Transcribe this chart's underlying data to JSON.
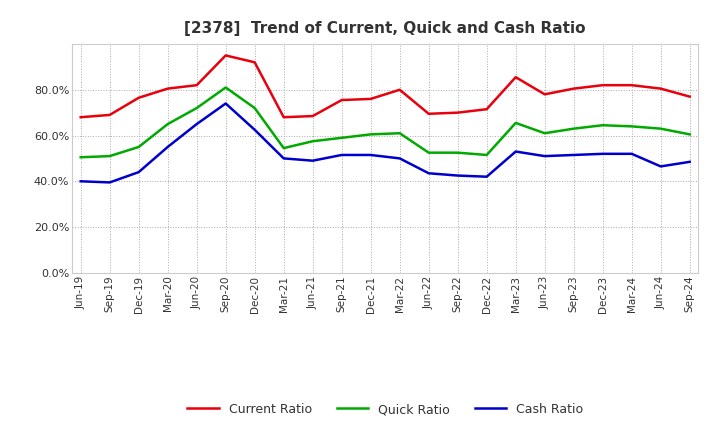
{
  "title": "[2378]  Trend of Current, Quick and Cash Ratio",
  "x_labels": [
    "Jun-19",
    "Sep-19",
    "Dec-19",
    "Mar-20",
    "Jun-20",
    "Sep-20",
    "Dec-20",
    "Mar-21",
    "Jun-21",
    "Sep-21",
    "Dec-21",
    "Mar-22",
    "Jun-22",
    "Sep-22",
    "Dec-22",
    "Mar-23",
    "Jun-23",
    "Sep-23",
    "Dec-23",
    "Mar-24",
    "Jun-24",
    "Sep-24"
  ],
  "current_ratio": [
    68.0,
    69.0,
    76.5,
    80.5,
    82.0,
    95.0,
    92.0,
    68.0,
    68.5,
    75.5,
    76.0,
    80.0,
    69.5,
    70.0,
    71.5,
    85.5,
    78.0,
    80.5,
    82.0,
    82.0,
    80.5,
    77.0
  ],
  "quick_ratio": [
    50.5,
    51.0,
    55.0,
    65.0,
    72.0,
    81.0,
    72.0,
    54.5,
    57.5,
    59.0,
    60.5,
    61.0,
    52.5,
    52.5,
    51.5,
    65.5,
    61.0,
    63.0,
    64.5,
    64.0,
    63.0,
    60.5
  ],
  "cash_ratio": [
    40.0,
    39.5,
    44.0,
    55.0,
    65.0,
    74.0,
    62.5,
    50.0,
    49.0,
    51.5,
    51.5,
    50.0,
    43.5,
    42.5,
    42.0,
    53.0,
    51.0,
    51.5,
    52.0,
    52.0,
    46.5,
    48.5
  ],
  "current_color": "#e8000d",
  "quick_color": "#00aa00",
  "cash_color": "#0000cc",
  "ylim": [
    0,
    100
  ],
  "yticks": [
    0,
    20,
    40,
    60,
    80
  ],
  "background_color": "#ffffff",
  "grid_color": "#aaaaaa",
  "title_color": "#333333",
  "legend_labels": [
    "Current Ratio",
    "Quick Ratio",
    "Cash Ratio"
  ]
}
